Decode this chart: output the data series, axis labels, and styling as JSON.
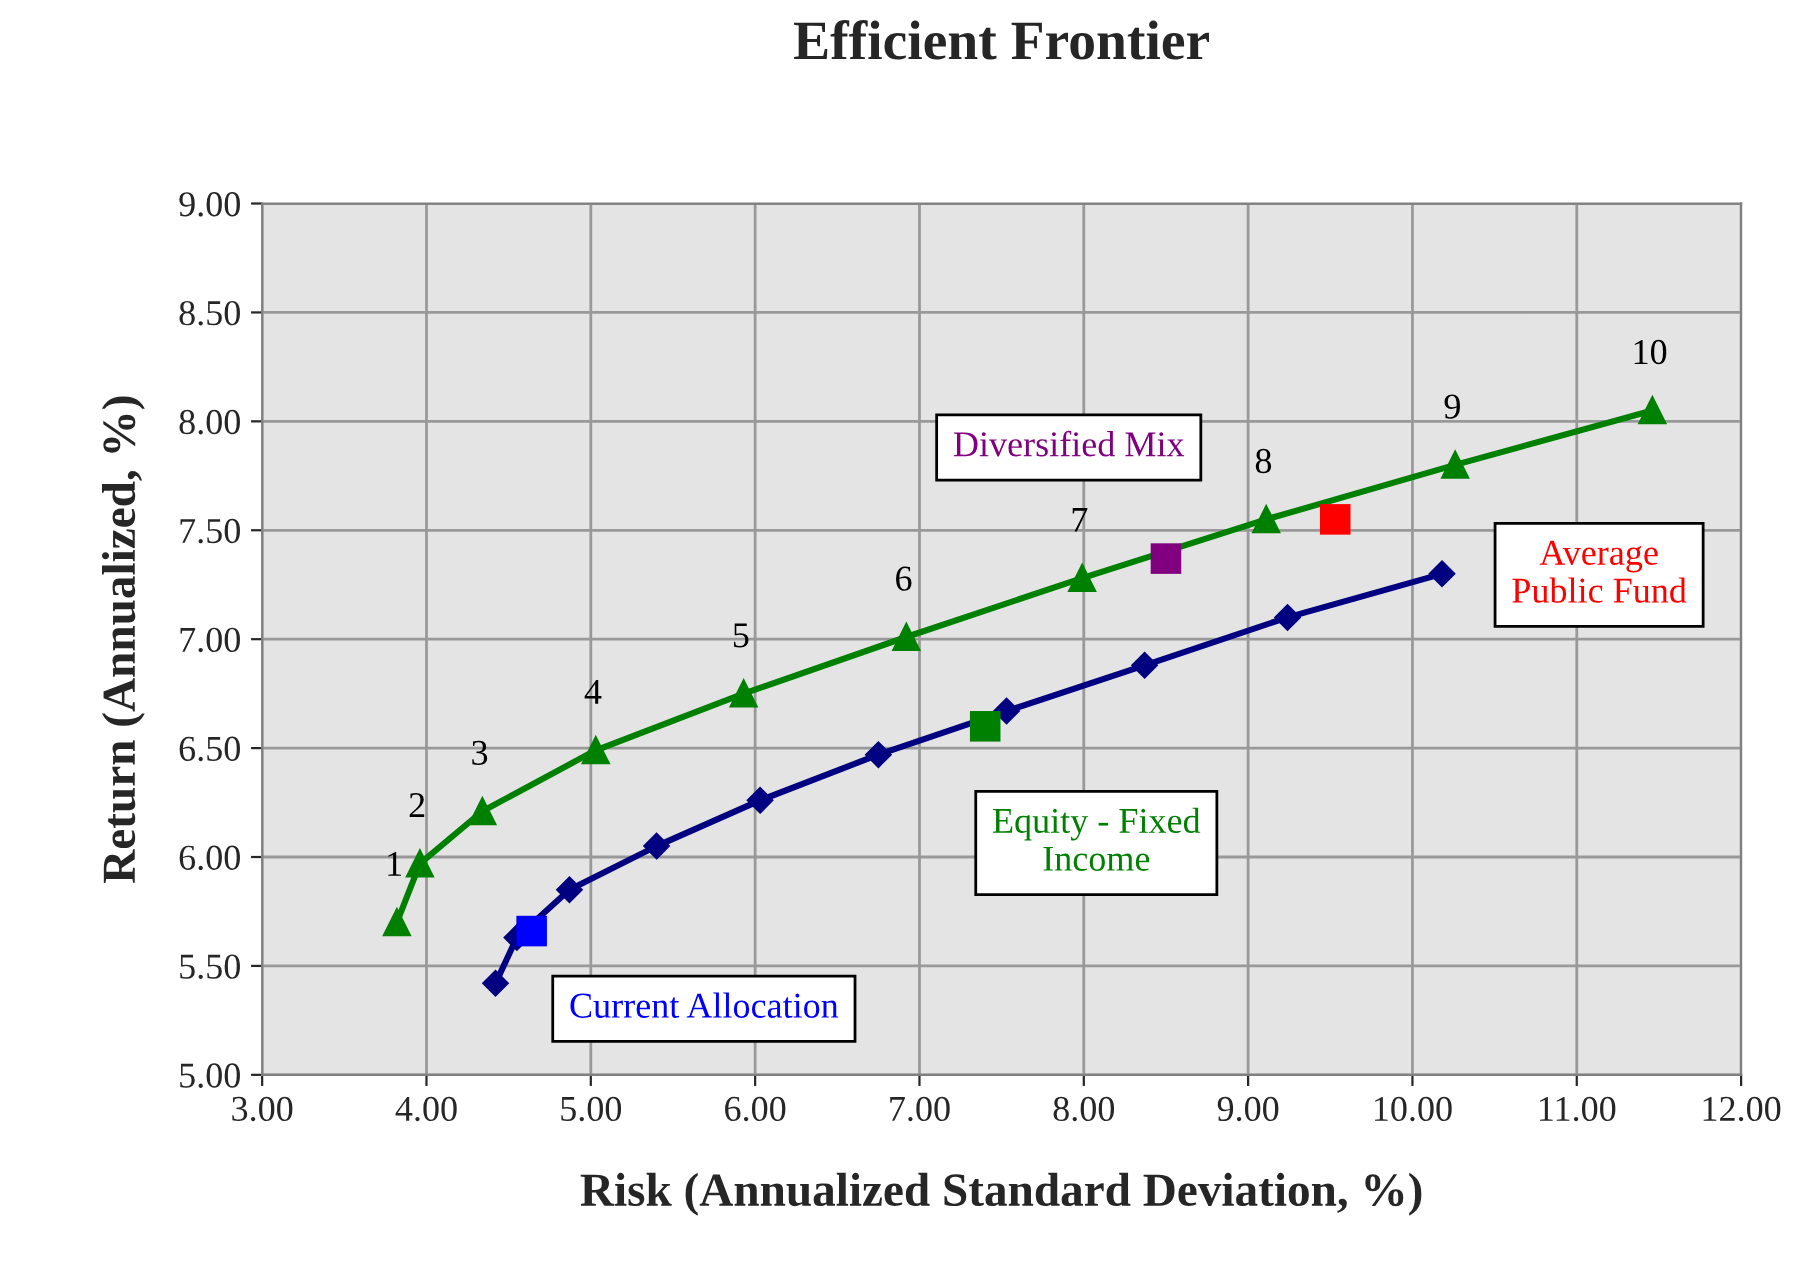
{
  "chart_data": {
    "type": "line",
    "title": "Efficient Frontier",
    "xlabel": "Risk (Annualized Standard Deviation, %)",
    "ylabel": "Return (Annualized, %)",
    "xlim": [
      3.0,
      12.0
    ],
    "xticks": [
      {
        "value": 3,
        "label": "3.00"
      },
      {
        "value": 4,
        "label": "4.00"
      },
      {
        "value": 5,
        "label": "5.00"
      },
      {
        "value": 6,
        "label": "6.00"
      },
      {
        "value": 7,
        "label": "7.00"
      },
      {
        "value": 8,
        "label": "8.00"
      },
      {
        "value": 9,
        "label": "9.00"
      },
      {
        "value": 10,
        "label": "10.00"
      },
      {
        "value": 11,
        "label": "11.00"
      },
      {
        "value": 12,
        "label": "12.00"
      }
    ],
    "ylim": [
      5.0,
      9.0
    ],
    "yticks": [
      {
        "value": 5,
        "label": "5.00"
      },
      {
        "value": 5.5,
        "label": "5.50"
      },
      {
        "value": 6,
        "label": "6.00"
      },
      {
        "value": 6.5,
        "label": "6.50"
      },
      {
        "value": 7,
        "label": "7.00"
      },
      {
        "value": 7.5,
        "label": "7.50"
      },
      {
        "value": 8,
        "label": "8.00"
      },
      {
        "value": 8.5,
        "label": "8.50"
      },
      {
        "value": 9,
        "label": "9.00"
      }
    ],
    "grid": true,
    "legend": false,
    "series": [
      {
        "marker": "triangle",
        "color": "#008000",
        "x": [
          3.82,
          3.96,
          4.34,
          5.03,
          5.93,
          6.92,
          7.99,
          9.11,
          10.26,
          11.46
        ],
        "values": [
          5.7,
          5.97,
          6.21,
          6.49,
          6.75,
          7.01,
          7.28,
          7.55,
          7.8,
          8.05
        ]
      },
      {
        "marker": "diamond",
        "color": "#000080",
        "x": [
          4.42,
          4.55,
          4.87,
          5.4,
          6.03,
          6.75,
          7.53,
          8.37,
          9.24,
          10.18
        ],
        "values": [
          5.42,
          5.63,
          5.85,
          6.05,
          6.26,
          6.47,
          6.67,
          6.88,
          7.1,
          7.3
        ]
      },
      {
        "type": "scatter",
        "marker": "square",
        "name": "Current Allocation",
        "color": "#0000ff",
        "x": [
          4.64
        ],
        "values": [
          5.66
        ]
      },
      {
        "type": "scatter",
        "marker": "square",
        "name": "Equity - Fixed\nIncome",
        "color": "#008000",
        "x": [
          7.4
        ],
        "values": [
          6.6
        ]
      },
      {
        "type": "scatter",
        "marker": "square",
        "name": "Diversified Mix",
        "color": "#800080",
        "x": [
          8.5
        ],
        "values": [
          7.37
        ]
      },
      {
        "type": "scatter",
        "marker": "square",
        "name": "Average\nPublic Fund",
        "color": "#ff0000",
        "x": [
          9.53
        ],
        "values": [
          7.55
        ]
      }
    ],
    "annotations": [
      {
        "text": "1",
        "x": 3.82,
        "y": 5.7
      },
      {
        "text": "2",
        "x": 3.96,
        "y": 5.97
      },
      {
        "text": "3",
        "x": 4.34,
        "y": 6.21
      },
      {
        "text": "4",
        "x": 5.03,
        "y": 6.49
      },
      {
        "text": "5",
        "x": 5.93,
        "y": 6.75
      },
      {
        "text": "6",
        "x": 6.92,
        "y": 7.01
      },
      {
        "text": "7",
        "x": 7.99,
        "y": 7.28
      },
      {
        "text": "8",
        "x": 9.11,
        "y": 7.55
      },
      {
        "text": "9",
        "x": 10.26,
        "y": 7.8
      },
      {
        "text": "10",
        "x": 11.46,
        "y": 8.05
      }
    ]
  }
}
